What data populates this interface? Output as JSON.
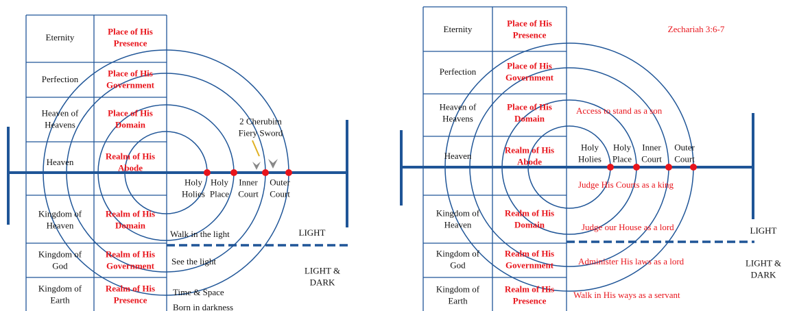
{
  "left_panel": {
    "rows": [
      {
        "level": [
          "Eternity"
        ],
        "place": [
          "Place of His",
          "Presence"
        ]
      },
      {
        "level": [
          "Perfection"
        ],
        "place": [
          "Place of His",
          "Government"
        ]
      },
      {
        "level": [
          "Heaven of",
          "Heavens"
        ],
        "place": [
          "Place of His",
          "Domain"
        ]
      },
      {
        "level": [
          "Heaven"
        ],
        "place": [
          "Realm of His",
          "Abode"
        ]
      },
      {
        "level": [
          "Kingdom of",
          "Heaven"
        ],
        "place": [
          "Realm of His",
          "Domain"
        ]
      },
      {
        "level": [
          "Kingdom of",
          "God"
        ],
        "place": [
          "Realm of His",
          "Government"
        ]
      },
      {
        "level": [
          "Kingdom of",
          "Earth"
        ],
        "place": [
          "Realm of His",
          "Presence"
        ]
      }
    ],
    "courts": [
      [
        "Holy",
        "Holies"
      ],
      [
        "Holy",
        "Place"
      ],
      [
        "Inner",
        "Court"
      ],
      [
        "Outer",
        "Court"
      ]
    ],
    "cherubim": [
      "2 Cherubim",
      "Fiery Sword"
    ],
    "notes": [
      "Walk in the light",
      "See the light",
      "Time & Space",
      "Born in darkness"
    ],
    "light": "LIGHT",
    "light_dark": [
      "LIGHT &",
      "DARK"
    ]
  },
  "right_panel": {
    "rows": [
      {
        "level": [
          "Eternity"
        ],
        "place": [
          "Place of His",
          "Presence"
        ]
      },
      {
        "level": [
          "Perfection"
        ],
        "place": [
          "Place of His",
          "Government"
        ]
      },
      {
        "level": [
          "Heaven of",
          "Heavens"
        ],
        "place": [
          "Place of His",
          "Domain"
        ]
      },
      {
        "level": [
          "Heaven"
        ],
        "place": [
          "Realm of His",
          "Abode"
        ]
      },
      {
        "level": [
          "Kingdom of",
          "Heaven"
        ],
        "place": [
          "Realm of His",
          "Domain"
        ]
      },
      {
        "level": [
          "Kingdom of",
          "God"
        ],
        "place": [
          "Realm of His",
          "Government"
        ]
      },
      {
        "level": [
          "Kingdom of",
          "Earth"
        ],
        "place": [
          "Realm of His",
          "Presence"
        ]
      }
    ],
    "courts": [
      [
        "Holy",
        "Holies"
      ],
      [
        "Holy",
        "Place"
      ],
      [
        "Inner",
        "Court"
      ],
      [
        "Outer",
        "Court"
      ]
    ],
    "reference": "Zechariah 3:6-7",
    "notes": [
      "Access to stand as a son",
      "Judge His Courts  as a king",
      "Judge our House as a lord",
      "Administer His laws as a lord",
      "Walk in His ways as a servant"
    ],
    "light": "LIGHT",
    "light_dark": [
      "LIGHT &",
      "DARK"
    ]
  }
}
